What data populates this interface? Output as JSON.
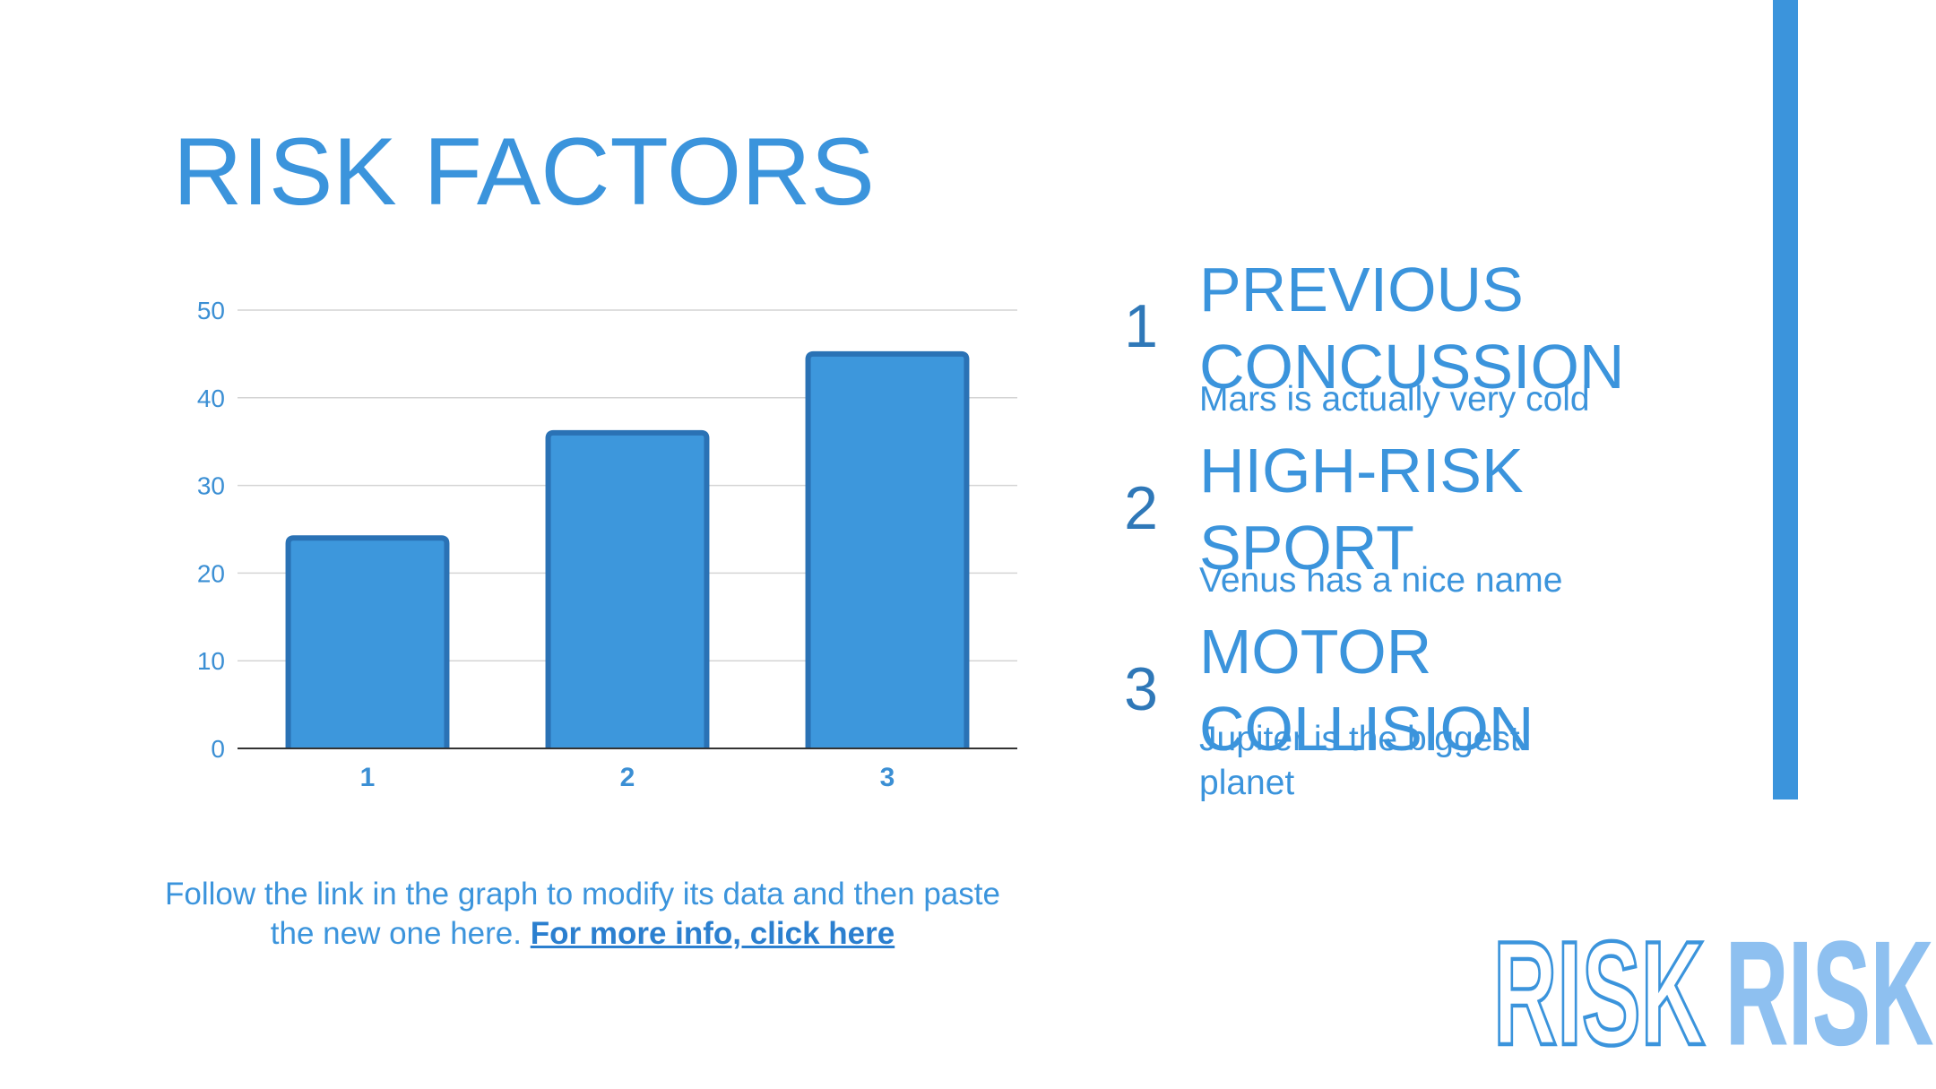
{
  "title": "RISK FACTORS",
  "chart_data": {
    "type": "bar",
    "categories": [
      "1",
      "2",
      "3"
    ],
    "values": [
      24,
      36,
      45
    ],
    "ylim": [
      0,
      50
    ],
    "yticks": [
      0,
      10,
      20,
      30,
      40,
      50
    ],
    "grid": true,
    "colors": {
      "bar_fill": "#3d97dc",
      "bar_stroke": "#2a72b5",
      "tick": "#3b8fd4"
    }
  },
  "caption": {
    "text": "Follow the link in the graph to modify its data and then paste the new one here.",
    "link": "For more info, click here"
  },
  "items": [
    {
      "number": "1",
      "title": "PREVIOUS CONCUSSION",
      "desc": "Mars is actually very cold"
    },
    {
      "number": "2",
      "title": "HIGH-RISK SPORT",
      "desc": "Venus has a nice name"
    },
    {
      "number": "3",
      "title": "MOTOR COLLISION",
      "desc": "Jupiter is the biggest planet"
    }
  ],
  "risk_words": [
    "RISK",
    "RISK"
  ],
  "colors": {
    "accent": "#3b94dc",
    "number": "#2f78b8",
    "outline_word": "#3b94dc",
    "fill_word": "#8ec0f0"
  }
}
